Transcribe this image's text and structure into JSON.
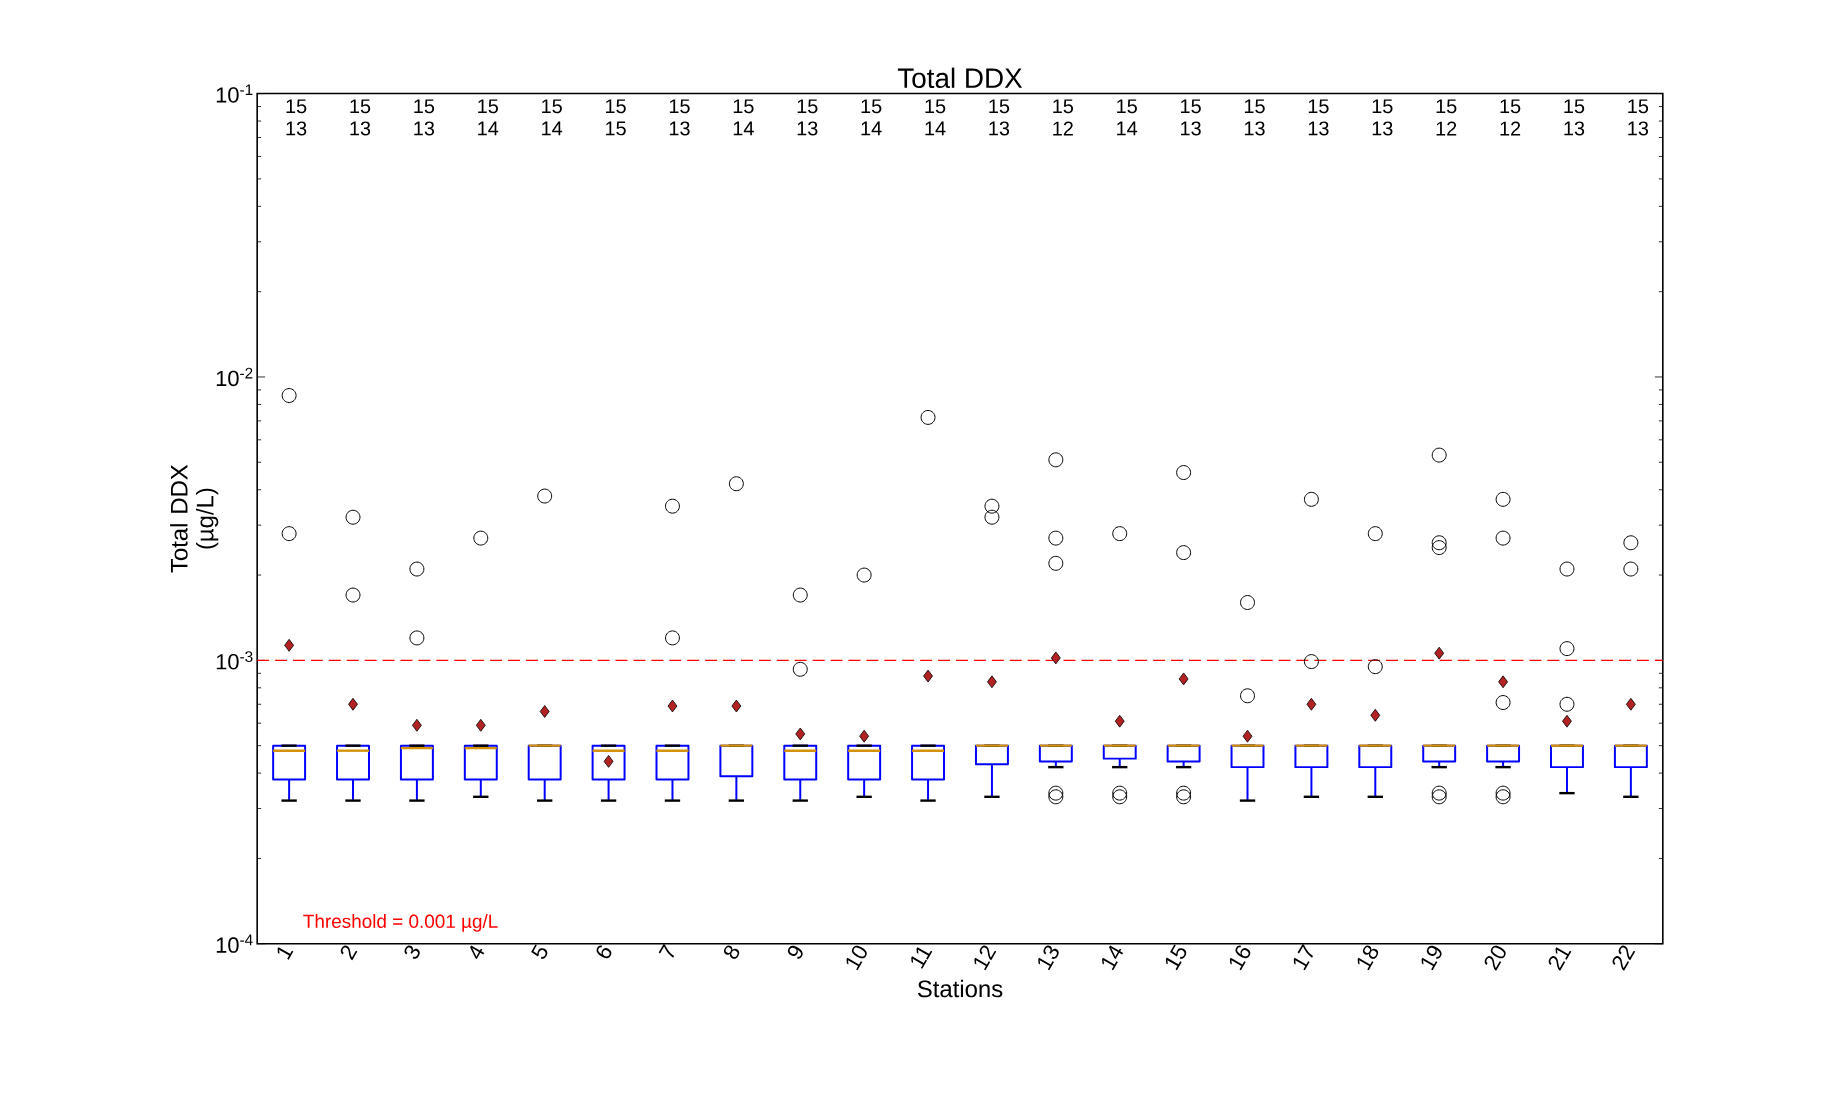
{
  "chart_data": {
    "type": "box",
    "title": "Total DDX",
    "xlabel": "Stations",
    "ylabel": "Total DDX (µg/L)",
    "log": "y",
    "grid": false,
    "color": "#0000ff",
    "categories": [
      "1",
      "2",
      "3",
      "4",
      "5",
      "6",
      "7",
      "8",
      "9",
      "10",
      "11",
      "12",
      "13",
      "14",
      "15",
      "16",
      "17",
      "18",
      "19",
      "20",
      "21",
      "22"
    ],
    "ylim": [
      0.0001,
      0.1
    ],
    "yticks": [
      {
        "value": 0.0001,
        "label": "10$^{-4}$"
      },
      {
        "value": 0.001,
        "label": "10$^{-3}$"
      },
      {
        "value": 0.01,
        "label": "10$^{-2}$"
      },
      {
        "value": 0.1,
        "label": "10$^{-1}$"
      }
    ],
    "boxes": [
      {
        "low": 0.00032,
        "q1": 0.00038,
        "median": 0.00048,
        "q3": 0.0005,
        "high": 0.0005,
        "mean": 0.00113,
        "outliers": [
          0.0086,
          0.0028
        ]
      },
      {
        "low": 0.00032,
        "q1": 0.00038,
        "median": 0.00048,
        "q3": 0.0005,
        "high": 0.0005,
        "mean": 0.0007,
        "outliers": [
          0.0032,
          0.0017
        ]
      },
      {
        "low": 0.00032,
        "q1": 0.00038,
        "median": 0.00049,
        "q3": 0.0005,
        "high": 0.0005,
        "mean": 0.00059,
        "outliers": [
          0.0021,
          0.0012
        ]
      },
      {
        "low": 0.00033,
        "q1": 0.00038,
        "median": 0.00049,
        "q3": 0.0005,
        "high": 0.0005,
        "mean": 0.00059,
        "outliers": [
          0.0027
        ]
      },
      {
        "low": 0.00032,
        "q1": 0.00038,
        "median": 0.0005,
        "q3": 0.0005,
        "high": 0.0005,
        "mean": 0.00066,
        "outliers": [
          0.0038
        ]
      },
      {
        "low": 0.00032,
        "q1": 0.00038,
        "median": 0.00048,
        "q3": 0.0005,
        "high": 0.0005,
        "mean": 0.00044
      },
      {
        "low": 0.00032,
        "q1": 0.00038,
        "median": 0.00048,
        "q3": 0.0005,
        "high": 0.0005,
        "mean": 0.00069,
        "outliers": [
          0.0035,
          0.0012
        ]
      },
      {
        "low": 0.00032,
        "q1": 0.00039,
        "median": 0.0005,
        "q3": 0.0005,
        "high": 0.0005,
        "mean": 0.00069,
        "outliers": [
          0.0042
        ]
      },
      {
        "low": 0.00032,
        "q1": 0.00038,
        "median": 0.00048,
        "q3": 0.0005,
        "high": 0.0005,
        "mean": 0.00055,
        "outliers": [
          0.0017,
          0.00093
        ]
      },
      {
        "low": 0.00033,
        "q1": 0.00038,
        "median": 0.00048,
        "q3": 0.0005,
        "high": 0.0005,
        "mean": 0.00054,
        "outliers": [
          0.002
        ]
      },
      {
        "low": 0.00032,
        "q1": 0.00038,
        "median": 0.00048,
        "q3": 0.0005,
        "high": 0.0005,
        "mean": 0.00088,
        "outliers": [
          0.0072
        ]
      },
      {
        "low": 0.00033,
        "q1": 0.00043,
        "median": 0.0005,
        "q3": 0.0005,
        "high": 0.0005,
        "mean": 0.00084,
        "outliers": [
          0.0035,
          0.0032
        ]
      },
      {
        "low": 0.00042,
        "q1": 0.00044,
        "median": 0.0005,
        "q3": 0.0005,
        "high": 0.0005,
        "mean": 0.00102,
        "outliers": [
          0.0051,
          0.0027,
          0.0022,
          0.00034,
          0.00033
        ]
      },
      {
        "low": 0.00042,
        "q1": 0.00045,
        "median": 0.0005,
        "q3": 0.0005,
        "high": 0.0005,
        "mean": 0.00061,
        "outliers": [
          0.0028,
          0.00034,
          0.00033
        ]
      },
      {
        "low": 0.00042,
        "q1": 0.00044,
        "median": 0.0005,
        "q3": 0.0005,
        "high": 0.0005,
        "mean": 0.00086,
        "outliers": [
          0.0046,
          0.0024,
          0.00034,
          0.00033
        ]
      },
      {
        "low": 0.00032,
        "q1": 0.00042,
        "median": 0.0005,
        "q3": 0.0005,
        "high": 0.0005,
        "mean": 0.00054,
        "outliers": [
          0.0016,
          0.00075
        ]
      },
      {
        "low": 0.00033,
        "q1": 0.00042,
        "median": 0.0005,
        "q3": 0.0005,
        "high": 0.0005,
        "mean": 0.0007,
        "outliers": [
          0.0037,
          0.00099
        ]
      },
      {
        "low": 0.00033,
        "q1": 0.00042,
        "median": 0.0005,
        "q3": 0.0005,
        "high": 0.0005,
        "mean": 0.00064,
        "outliers": [
          0.0028,
          0.00095
        ]
      },
      {
        "low": 0.00042,
        "q1": 0.00044,
        "median": 0.0005,
        "q3": 0.0005,
        "high": 0.0005,
        "mean": 0.00106,
        "outliers": [
          0.0053,
          0.0026,
          0.0025,
          0.00034,
          0.00033
        ]
      },
      {
        "low": 0.00042,
        "q1": 0.00044,
        "median": 0.0005,
        "q3": 0.0005,
        "high": 0.0005,
        "mean": 0.00084,
        "outliers": [
          0.0037,
          0.0027,
          0.00071,
          0.00034,
          0.00033
        ]
      },
      {
        "low": 0.00034,
        "q1": 0.00042,
        "median": 0.0005,
        "q3": 0.0005,
        "high": 0.0005,
        "mean": 0.00061,
        "outliers": [
          0.0021,
          0.0011,
          0.0007
        ]
      },
      {
        "low": 0.00033,
        "q1": 0.00042,
        "median": 0.0005,
        "q3": 0.0005,
        "high": 0.0005,
        "mean": 0.0007,
        "outliers": [
          0.0026,
          0.0021
        ]
      }
    ],
    "ref_lines": [
      {
        "axis": "y",
        "value": 0.001,
        "label": "Threshold = 0.001 µg/L",
        "color": "#ff0000",
        "line_style": "dashed"
      }
    ],
    "annotations": [
      "15",
      "13",
      "15",
      "13",
      "15",
      "13",
      "15",
      "14",
      "15",
      "14",
      "15",
      "15",
      "15",
      "13",
      "15",
      "14",
      "15",
      "13",
      "15",
      "14",
      "15",
      "14",
      "15",
      "13",
      "15",
      "12",
      "15",
      "14",
      "15",
      "13",
      "15",
      "13",
      "15",
      "13",
      "15",
      "13",
      "15",
      "12",
      "15",
      "12",
      "15",
      "13",
      "15",
      "13"
    ]
  }
}
